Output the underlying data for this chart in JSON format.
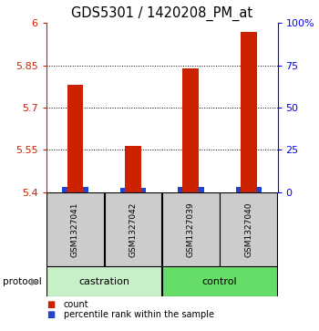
{
  "title": "GDS5301 / 1420208_PM_at",
  "samples": [
    "GSM1327041",
    "GSM1327042",
    "GSM1327039",
    "GSM1327040"
  ],
  "red_tops": [
    5.78,
    5.565,
    5.84,
    5.97
  ],
  "blue_tops": [
    5.418,
    5.416,
    5.417,
    5.418
  ],
  "bar_base": 5.4,
  "left_ylim": [
    5.4,
    6.0
  ],
  "left_yticks": [
    5.4,
    5.55,
    5.7,
    5.85,
    6
  ],
  "right_yticks": [
    0,
    25,
    50,
    75,
    100
  ],
  "right_ylim": [
    0,
    100
  ],
  "dotted_lines": [
    5.55,
    5.7,
    5.85
  ],
  "protocol_labels": [
    "castration",
    "control"
  ],
  "protocol_color_cast": "#c8f0c8",
  "protocol_color_ctrl": "#66dd66",
  "bar_color_red": "#cc2200",
  "bar_color_blue": "#2244cc",
  "bg_color": "#ffffff",
  "sample_box_color": "#cccccc",
  "legend_red_label": "count",
  "legend_blue_label": "percentile rank within the sample",
  "title_fontsize": 10.5,
  "tick_fontsize": 8
}
